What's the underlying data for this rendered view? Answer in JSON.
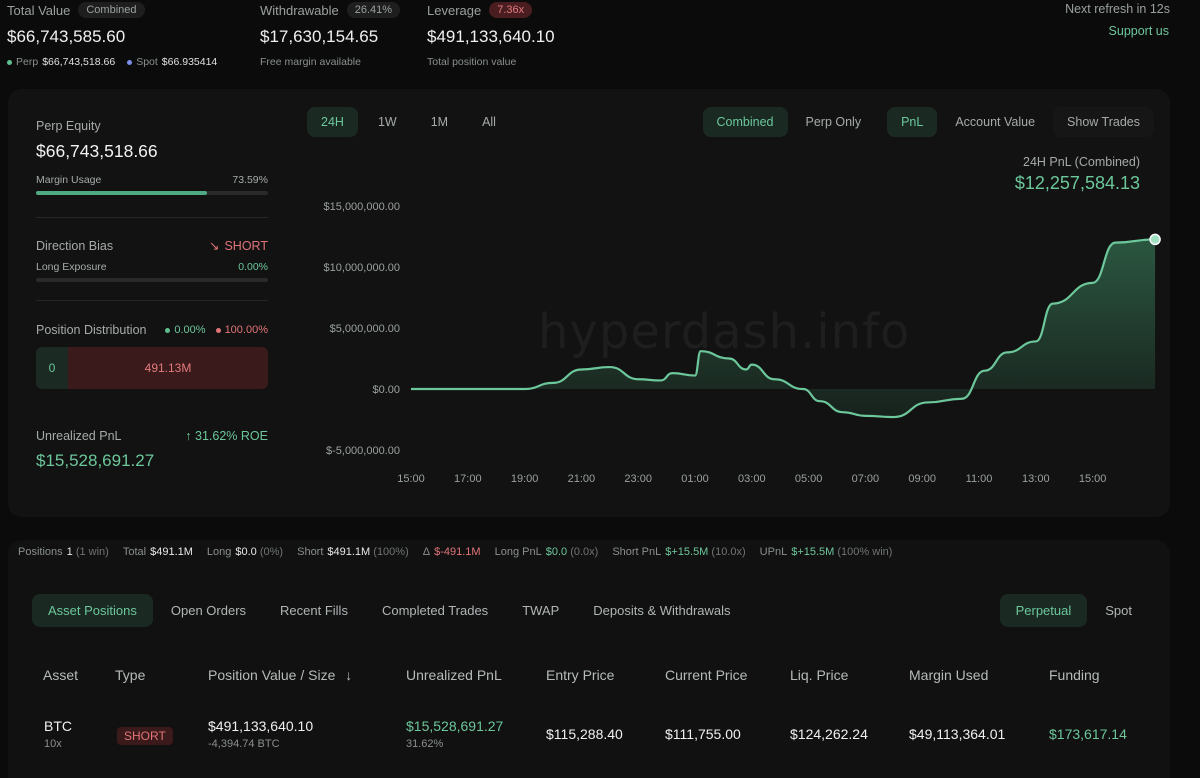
{
  "top": {
    "total_value_label": "Total Value",
    "combined_pill": "Combined",
    "total_value": "$66,743,585.60",
    "perp_label": "Perp",
    "perp_value": "$66,743,518.66",
    "spot_label": "Spot",
    "spot_value": "$66.935414",
    "withdrawable_label": "Withdrawable",
    "withdrawable_pct": "26.41%",
    "withdrawable_value": "$17,630,154.65",
    "withdrawable_sub": "Free margin available",
    "leverage_label": "Leverage",
    "leverage_pill": "7.36x",
    "leverage_value": "$491,133,640.10",
    "leverage_sub": "Total position value",
    "refresh": "Next refresh in 12s",
    "support": "Support us"
  },
  "left": {
    "perp_equity_label": "Perp Equity",
    "perp_equity": "$66,743,518.66",
    "margin_usage_label": "Margin Usage",
    "margin_usage": "73.59%",
    "margin_usage_fraction": 0.7359,
    "direction_bias_label": "Direction Bias",
    "direction_bias": "SHORT",
    "long_exposure_label": "Long Exposure",
    "long_exposure": "0.00%",
    "position_dist_label": "Position Distribution",
    "dist_long_pct": "0.00%",
    "dist_short_pct": "100.00%",
    "dist_long_value": "0",
    "dist_short_value": "491.13M",
    "upnl_label": "Unrealized PnL",
    "roe": "31.62% ROE",
    "upnl": "$15,528,691.27"
  },
  "chart_controls": {
    "time_tabs": [
      "24H",
      "1W",
      "1M",
      "All"
    ],
    "mode_tabs": [
      "Combined",
      "Perp Only"
    ],
    "metric_tabs": [
      "PnL",
      "Account Value",
      "Show Trades"
    ],
    "pnl_label": "24H PnL (Combined)",
    "pnl_value": "$12,257,584.13",
    "watermark": "hyperdash.info"
  },
  "chart_data": {
    "type": "area",
    "x_ticks": [
      "15:00",
      "17:00",
      "19:00",
      "21:00",
      "23:00",
      "01:00",
      "03:00",
      "05:00",
      "07:00",
      "09:00",
      "11:00",
      "13:00",
      "15:00"
    ],
    "y_ticks": [
      "$15,000,000.00",
      "$10,000,000.00",
      "$5,000,000.00",
      "$0.00",
      "$-5,000,000.00"
    ],
    "ylim": [
      -5000000,
      15000000
    ],
    "series": [
      {
        "x": [
          0,
          1,
          2,
          2.5,
          3,
          3.5,
          4,
          4.4,
          4.6,
          5,
          5.1,
          5.6,
          5.9,
          6,
          6.4,
          6.9,
          7.2,
          7.6,
          8,
          8.5,
          9.1,
          9.7,
          10.1,
          10.5,
          11,
          11.3,
          12,
          12.4,
          13.1
        ],
        "values": [
          0,
          0,
          0,
          500000,
          1600000,
          1800000,
          800000,
          700000,
          1300000,
          1100000,
          3100000,
          2500000,
          1600000,
          2000000,
          800000,
          0,
          -1000000,
          -1900000,
          -2200000,
          -2300000,
          -1100000,
          -800000,
          1500000,
          3000000,
          3900000,
          7000000,
          8700000,
          12000000,
          12260000
        ]
      }
    ]
  },
  "summary": {
    "positions_label": "Positions",
    "positions_value": "1",
    "positions_note": "(1 win)",
    "total_label": "Total",
    "total_value": "$491.1M",
    "long_label": "Long",
    "long_value": "$0.0",
    "long_note": "(0%)",
    "short_label": "Short",
    "short_value": "$491.1M",
    "short_note": "(100%)",
    "delta_label": "Δ",
    "delta_value": "$-491.1M",
    "long_pnl_label": "Long PnL",
    "long_pnl_value": "$0.0",
    "long_pnl_note": "(0.0x)",
    "short_pnl_label": "Short PnL",
    "short_pnl_value": "$+15.5M",
    "short_pnl_note": "(10.0x)",
    "upnl_label": "UPnL",
    "upnl_value": "$+15.5M",
    "upnl_note": "(100% win)"
  },
  "bottom_tabs": [
    "Asset Positions",
    "Open Orders",
    "Recent Fills",
    "Completed Trades",
    "TWAP",
    "Deposits & Withdrawals"
  ],
  "bottom_tabs_right": [
    "Perpetual",
    "Spot"
  ],
  "table": {
    "headers": [
      "Asset",
      "Type",
      "Position Value / Size",
      "Unrealized PnL",
      "Entry Price",
      "Current Price",
      "Liq. Price",
      "Margin Used",
      "Funding"
    ],
    "sort_arrow": "↓",
    "row": {
      "asset": "BTC",
      "leverage": "10x",
      "type": "SHORT",
      "position_value": "$491,133,640.10",
      "size": "-4,394.74 BTC",
      "upnl": "$15,528,691.27",
      "upnl_pct": "31.62%",
      "entry": "$115,288.40",
      "current": "$111,755.00",
      "liq": "$124,262.24",
      "margin": "$49,113,364.01",
      "funding": "$173,617.14"
    }
  },
  "colors": {
    "accent": "#6cc79b",
    "short": "#e07478",
    "bg": "#0b0b0b"
  }
}
